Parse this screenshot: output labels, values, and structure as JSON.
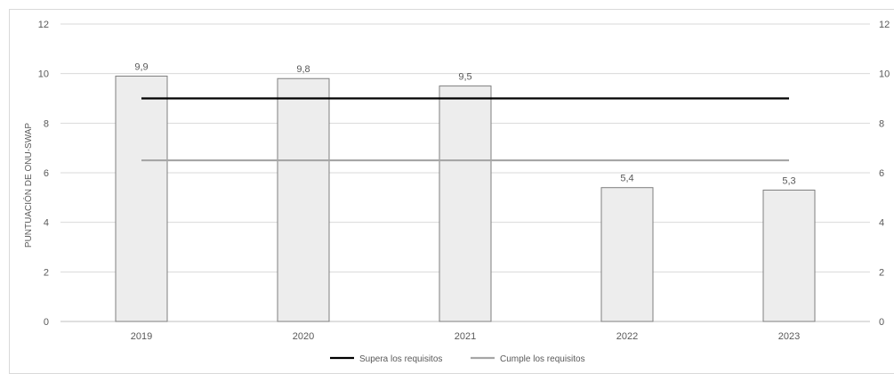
{
  "chart_data": {
    "type": "bar",
    "title": "",
    "xlabel": "",
    "ylabel": "PUNTUACIÓN DE ONU-SWAP",
    "ylim": [
      0,
      12
    ],
    "yticks": [
      "0",
      "2",
      "4",
      "6",
      "8",
      "10",
      "12"
    ],
    "right_yticks": [
      "0",
      "2",
      "4",
      "6",
      "8",
      "10",
      "12"
    ],
    "categories": [
      "2019",
      "2020",
      "2021",
      "2022",
      "2023"
    ],
    "values": [
      9.9,
      9.8,
      9.5,
      5.4,
      5.3
    ],
    "data_labels": [
      "9,9",
      "9,8",
      "9,5",
      "5,4",
      "5,3"
    ],
    "reference_lines": [
      {
        "name": "Supera los requisitos",
        "value": 9.0,
        "color": "#000000"
      },
      {
        "name": "Cumple los requisitos",
        "value": 6.5,
        "color": "#a6a6a6"
      }
    ],
    "bar_fill": "#ededed",
    "bar_stroke": "#7f7f7f",
    "grid": true,
    "grid_color": "#d9d9d9",
    "legend_position": "bottom"
  }
}
